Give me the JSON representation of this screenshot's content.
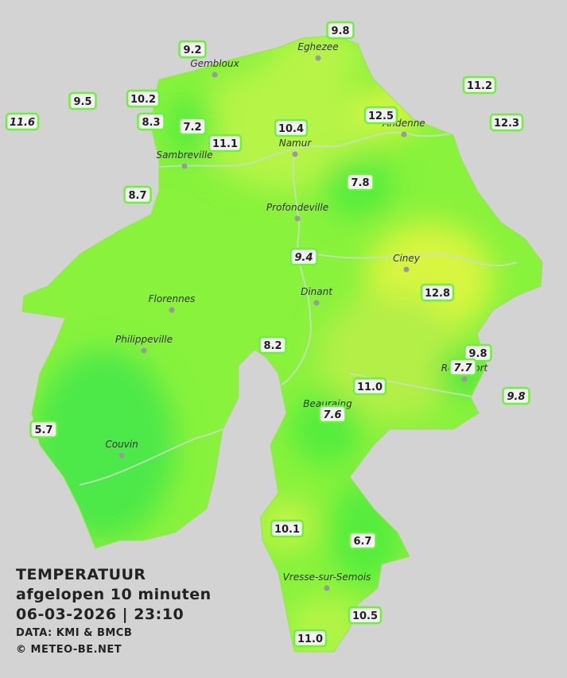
{
  "info": {
    "title": "TEMPERATUUR",
    "subtitle": "afgelopen 10 minuten",
    "timestamp": "06-03-2026  |  23:10",
    "source": "DATA: KMI & BMCB",
    "copyright": "© METEO-BE.NET"
  },
  "towns": [
    "Eghezee",
    "Gembloux",
    "Andenne",
    "Namur",
    "Sambreville",
    "Profondeville",
    "Ciney",
    "Dinant",
    "Florennes",
    "Philippeville",
    "Rochefort",
    "Beauraing",
    "Couvin",
    "Vresse-sur-Semois"
  ],
  "stations": [
    {
      "label": "9.8"
    },
    {
      "label": "9.2"
    },
    {
      "label": "11.2"
    },
    {
      "label": "9.5"
    },
    {
      "label": "10.2"
    },
    {
      "label": "11.6",
      "italic": true
    },
    {
      "label": "8.3"
    },
    {
      "label": "7.2"
    },
    {
      "label": "12.5"
    },
    {
      "label": "12.3"
    },
    {
      "label": "10.4"
    },
    {
      "label": "11.1"
    },
    {
      "label": "7.8"
    },
    {
      "label": "8.7"
    },
    {
      "label": "9.4",
      "italic": true
    },
    {
      "label": "12.8"
    },
    {
      "label": "8.2"
    },
    {
      "label": "9.8"
    },
    {
      "label": "7.7",
      "italic": true
    },
    {
      "label": "11.0"
    },
    {
      "label": "9.8",
      "italic": true
    },
    {
      "label": "7.6",
      "italic": true
    },
    {
      "label": "5.7"
    },
    {
      "label": "10.1"
    },
    {
      "label": "6.7"
    },
    {
      "label": "10.5"
    },
    {
      "label": "11.0"
    }
  ]
}
